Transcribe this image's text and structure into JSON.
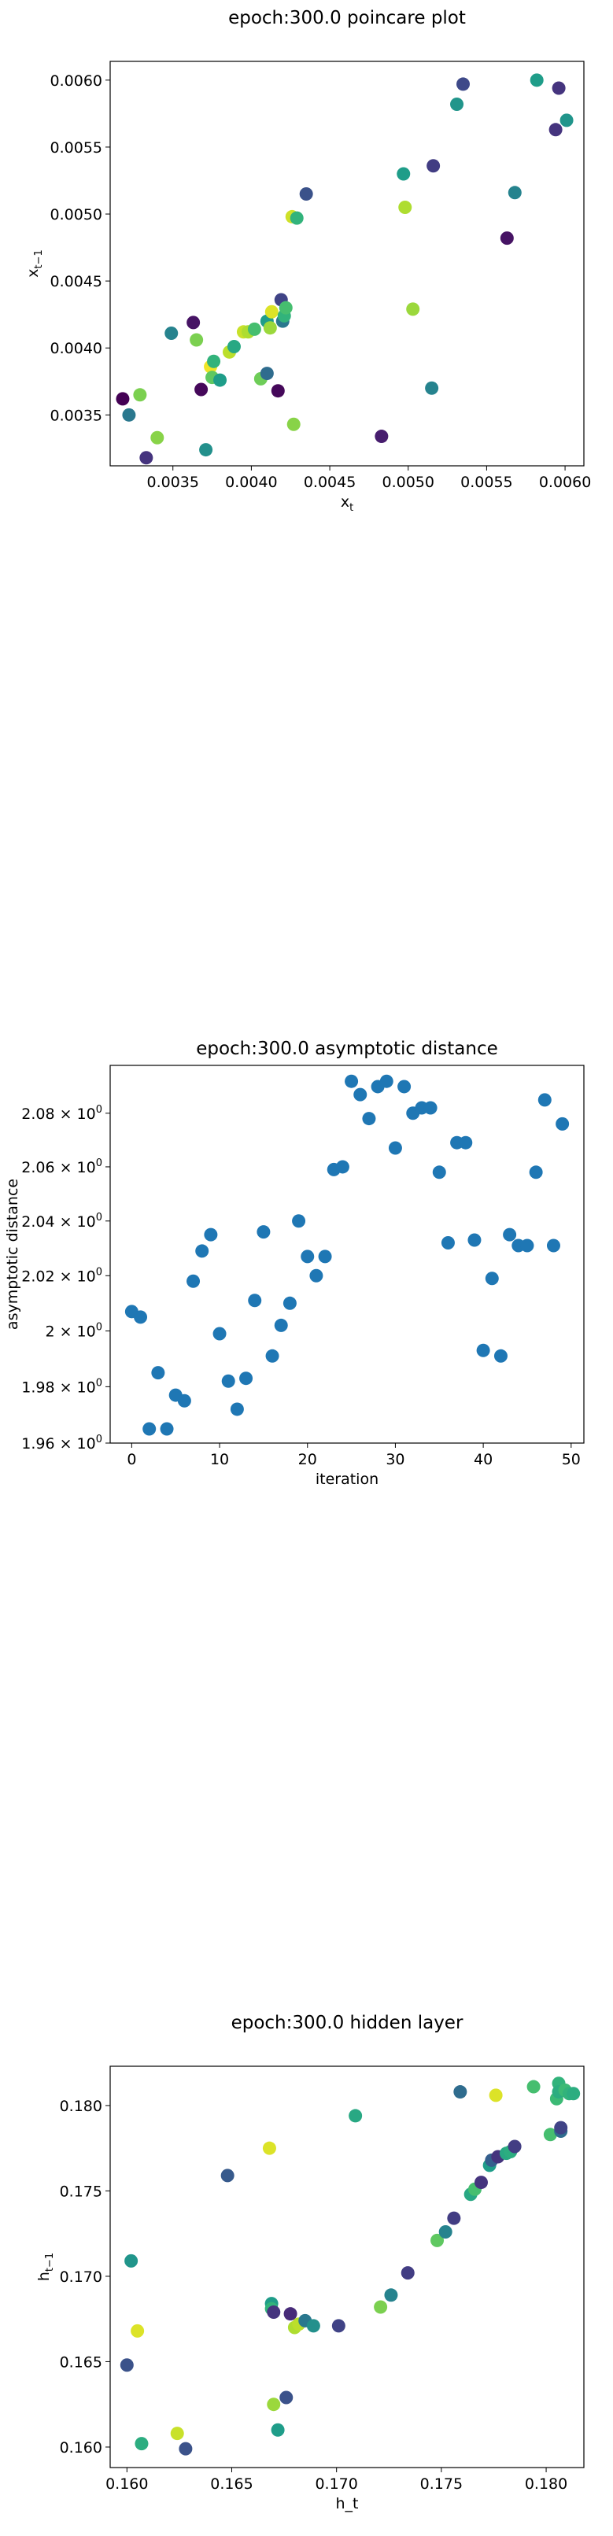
{
  "chart_data": [
    {
      "type": "scatter",
      "title": "epoch:300.0 poincare plot",
      "xlabel": "x",
      "xlabel_sub": "t",
      "ylabel": "x",
      "ylabel_sub": "t−1",
      "xlim": [
        0.0031,
        0.00612
      ],
      "ylim": [
        0.00312,
        0.00614
      ],
      "xticks": [
        0.0035,
        0.004,
        0.0045,
        0.005,
        0.0055,
        0.006
      ],
      "xtick_labels": [
        "0.0035",
        "0.0040",
        "0.0045",
        "0.0050",
        "0.0055",
        "0.0060"
      ],
      "yticks": [
        0.0035,
        0.004,
        0.0045,
        0.005,
        0.0055,
        0.006
      ],
      "ytick_labels": [
        "0.0035",
        "0.0040",
        "0.0045",
        "0.0050",
        "0.0055",
        "0.0060"
      ],
      "colormap": "viridis",
      "points": [
        {
          "x": 0.00318,
          "y": 0.00362,
          "c": 0.0
        },
        {
          "x": 0.00322,
          "y": 0.0035,
          "c": 0.4
        },
        {
          "x": 0.00329,
          "y": 0.00365,
          "c": 0.8
        },
        {
          "x": 0.00333,
          "y": 0.00318,
          "c": 0.15
        },
        {
          "x": 0.0034,
          "y": 0.00333,
          "c": 0.82
        },
        {
          "x": 0.00349,
          "y": 0.00411,
          "c": 0.45
        },
        {
          "x": 0.00363,
          "y": 0.00419,
          "c": 0.05
        },
        {
          "x": 0.00365,
          "y": 0.00406,
          "c": 0.8
        },
        {
          "x": 0.00368,
          "y": 0.00369,
          "c": 0.02
        },
        {
          "x": 0.00371,
          "y": 0.00324,
          "c": 0.5
        },
        {
          "x": 0.00374,
          "y": 0.00386,
          "c": 0.98
        },
        {
          "x": 0.00375,
          "y": 0.00378,
          "c": 0.75
        },
        {
          "x": 0.00376,
          "y": 0.0039,
          "c": 0.65
        },
        {
          "x": 0.0038,
          "y": 0.00376,
          "c": 0.55
        },
        {
          "x": 0.00386,
          "y": 0.00397,
          "c": 0.9
        },
        {
          "x": 0.00389,
          "y": 0.00401,
          "c": 0.6
        },
        {
          "x": 0.00395,
          "y": 0.00412,
          "c": 0.92
        },
        {
          "x": 0.00398,
          "y": 0.00412,
          "c": 0.88
        },
        {
          "x": 0.00402,
          "y": 0.00414,
          "c": 0.7
        },
        {
          "x": 0.00406,
          "y": 0.00377,
          "c": 0.78
        },
        {
          "x": 0.0041,
          "y": 0.00381,
          "c": 0.35
        },
        {
          "x": 0.0041,
          "y": 0.0042,
          "c": 0.55
        },
        {
          "x": 0.00412,
          "y": 0.00415,
          "c": 0.85
        },
        {
          "x": 0.00413,
          "y": 0.00427,
          "c": 0.95
        },
        {
          "x": 0.00417,
          "y": 0.00368,
          "c": 0.02
        },
        {
          "x": 0.00419,
          "y": 0.00436,
          "c": 0.2
        },
        {
          "x": 0.0042,
          "y": 0.0042,
          "c": 0.4
        },
        {
          "x": 0.00421,
          "y": 0.00424,
          "c": 0.65
        },
        {
          "x": 0.00422,
          "y": 0.0043,
          "c": 0.7
        },
        {
          "x": 0.00426,
          "y": 0.00498,
          "c": 0.93
        },
        {
          "x": 0.00427,
          "y": 0.00343,
          "c": 0.82
        },
        {
          "x": 0.00429,
          "y": 0.00497,
          "c": 0.65
        },
        {
          "x": 0.00435,
          "y": 0.00515,
          "c": 0.25
        },
        {
          "x": 0.00483,
          "y": 0.00334,
          "c": 0.08
        },
        {
          "x": 0.00497,
          "y": 0.0053,
          "c": 0.55
        },
        {
          "x": 0.00498,
          "y": 0.00505,
          "c": 0.88
        },
        {
          "x": 0.00503,
          "y": 0.00429,
          "c": 0.85
        },
        {
          "x": 0.00515,
          "y": 0.0037,
          "c": 0.45
        },
        {
          "x": 0.00516,
          "y": 0.00536,
          "c": 0.18
        },
        {
          "x": 0.00531,
          "y": 0.00582,
          "c": 0.52
        },
        {
          "x": 0.00535,
          "y": 0.00597,
          "c": 0.22
        },
        {
          "x": 0.00563,
          "y": 0.00482,
          "c": 0.05
        },
        {
          "x": 0.00568,
          "y": 0.00516,
          "c": 0.45
        },
        {
          "x": 0.00582,
          "y": 0.006,
          "c": 0.55
        },
        {
          "x": 0.00594,
          "y": 0.00563,
          "c": 0.15
        },
        {
          "x": 0.00596,
          "y": 0.00594,
          "c": 0.15
        },
        {
          "x": 0.00601,
          "y": 0.0057,
          "c": 0.52
        }
      ]
    },
    {
      "type": "scatter",
      "title": "epoch:300.0 asymptotic distance",
      "xlabel": "iteration",
      "ylabel": "asymptotic distance",
      "yscale": "log",
      "xlim": [
        -2.45,
        51.45
      ],
      "ylim": [
        1.96,
        2.098
      ],
      "xticks": [
        0,
        10,
        20,
        30,
        40,
        50
      ],
      "xtick_labels": [
        "0",
        "10",
        "20",
        "30",
        "40",
        "50"
      ],
      "yticks": [
        1.96,
        1.98,
        2.0,
        2.02,
        2.04,
        2.06,
        2.08
      ],
      "ytick_base": [
        "1.96",
        "1.98",
        "2",
        "2.02",
        "2.04",
        "2.06",
        "2.08"
      ],
      "ytick_suffix": "× 10",
      "ytick_exp": "0",
      "color": "#1f77b4",
      "x": [
        0,
        1,
        2,
        3,
        4,
        5,
        6,
        7,
        8,
        9,
        10,
        11,
        12,
        13,
        14,
        15,
        16,
        17,
        18,
        19,
        20,
        21,
        22,
        23,
        24,
        25,
        26,
        27,
        28,
        29,
        30,
        31,
        32,
        33,
        34,
        35,
        36,
        37,
        38,
        39,
        40,
        41,
        42,
        43,
        44,
        45,
        46,
        47,
        48,
        49
      ],
      "y": [
        2.007,
        2.005,
        1.965,
        1.985,
        1.965,
        1.977,
        1.975,
        2.018,
        2.029,
        2.035,
        1.999,
        1.982,
        1.972,
        1.983,
        2.011,
        2.036,
        1.991,
        2.002,
        2.01,
        2.04,
        2.027,
        2.02,
        2.027,
        2.059,
        2.06,
        2.092,
        2.087,
        2.078,
        2.09,
        2.092,
        2.067,
        2.09,
        2.08,
        2.082,
        2.082,
        2.058,
        2.032,
        2.069,
        2.069,
        2.033,
        1.993,
        2.019,
        1.991,
        2.035,
        2.031,
        2.031,
        2.058,
        2.085,
        2.031,
        2.076
      ]
    },
    {
      "type": "scatter",
      "title": "epoch:300.0 hidden layer",
      "xlabel": "h_t",
      "ylabel": "h",
      "ylabel_sub": "t−1",
      "xlim": [
        0.1592,
        0.1818
      ],
      "ylim": [
        0.1588,
        0.1823
      ],
      "xticks": [
        0.16,
        0.165,
        0.17,
        0.175,
        0.18
      ],
      "xtick_labels": [
        "0.160",
        "0.165",
        "0.170",
        "0.175",
        "0.180"
      ],
      "yticks": [
        0.16,
        0.165,
        0.17,
        0.175,
        0.18
      ],
      "ytick_labels": [
        "0.160",
        "0.165",
        "0.170",
        "0.175",
        "0.180"
      ],
      "colormap": "viridis",
      "points": [
        {
          "x": 0.16,
          "y": 0.1648,
          "c": 0.25
        },
        {
          "x": 0.1602,
          "y": 0.1709,
          "c": 0.52
        },
        {
          "x": 0.1605,
          "y": 0.1668,
          "c": 0.95
        },
        {
          "x": 0.1607,
          "y": 0.1602,
          "c": 0.62
        },
        {
          "x": 0.1624,
          "y": 0.1608,
          "c": 0.92
        },
        {
          "x": 0.1628,
          "y": 0.1599,
          "c": 0.25
        },
        {
          "x": 0.1648,
          "y": 0.1759,
          "c": 0.28
        },
        {
          "x": 0.1668,
          "y": 0.1775,
          "c": 0.95
        },
        {
          "x": 0.1669,
          "y": 0.1684,
          "c": 0.55
        },
        {
          "x": 0.1669,
          "y": 0.1681,
          "c": 0.65
        },
        {
          "x": 0.167,
          "y": 0.1679,
          "c": 0.15
        },
        {
          "x": 0.167,
          "y": 0.1625,
          "c": 0.85
        },
        {
          "x": 0.1672,
          "y": 0.161,
          "c": 0.55
        },
        {
          "x": 0.1676,
          "y": 0.1629,
          "c": 0.25
        },
        {
          "x": 0.1678,
          "y": 0.1678,
          "c": 0.12
        },
        {
          "x": 0.168,
          "y": 0.167,
          "c": 0.88
        },
        {
          "x": 0.1682,
          "y": 0.1672,
          "c": 0.9
        },
        {
          "x": 0.1685,
          "y": 0.1674,
          "c": 0.4
        },
        {
          "x": 0.1689,
          "y": 0.1671,
          "c": 0.5
        },
        {
          "x": 0.1701,
          "y": 0.1671,
          "c": 0.2
        },
        {
          "x": 0.1709,
          "y": 0.1794,
          "c": 0.6
        },
        {
          "x": 0.1721,
          "y": 0.1682,
          "c": 0.8
        },
        {
          "x": 0.1726,
          "y": 0.1689,
          "c": 0.45
        },
        {
          "x": 0.1734,
          "y": 0.1702,
          "c": 0.18
        },
        {
          "x": 0.1748,
          "y": 0.1721,
          "c": 0.75
        },
        {
          "x": 0.1752,
          "y": 0.1726,
          "c": 0.45
        },
        {
          "x": 0.1756,
          "y": 0.1734,
          "c": 0.18
        },
        {
          "x": 0.1759,
          "y": 0.1808,
          "c": 0.35
        },
        {
          "x": 0.1764,
          "y": 0.1748,
          "c": 0.6
        },
        {
          "x": 0.1766,
          "y": 0.1751,
          "c": 0.7
        },
        {
          "x": 0.1769,
          "y": 0.1755,
          "c": 0.15
        },
        {
          "x": 0.1773,
          "y": 0.1765,
          "c": 0.55
        },
        {
          "x": 0.1774,
          "y": 0.1768,
          "c": 0.3
        },
        {
          "x": 0.1776,
          "y": 0.1806,
          "c": 0.95
        },
        {
          "x": 0.1777,
          "y": 0.177,
          "c": 0.15
        },
        {
          "x": 0.1781,
          "y": 0.1772,
          "c": 0.6
        },
        {
          "x": 0.1783,
          "y": 0.1773,
          "c": 0.62
        },
        {
          "x": 0.1785,
          "y": 0.1776,
          "c": 0.18
        },
        {
          "x": 0.1794,
          "y": 0.1811,
          "c": 0.7
        },
        {
          "x": 0.1802,
          "y": 0.1783,
          "c": 0.7
        },
        {
          "x": 0.1805,
          "y": 0.1804,
          "c": 0.68
        },
        {
          "x": 0.1806,
          "y": 0.1813,
          "c": 0.65
        },
        {
          "x": 0.1806,
          "y": 0.1808,
          "c": 0.62
        },
        {
          "x": 0.1807,
          "y": 0.1785,
          "c": 0.35
        },
        {
          "x": 0.1807,
          "y": 0.1787,
          "c": 0.2
        },
        {
          "x": 0.1809,
          "y": 0.1809,
          "c": 0.68
        },
        {
          "x": 0.1811,
          "y": 0.1807,
          "c": 0.65
        },
        {
          "x": 0.1813,
          "y": 0.1807,
          "c": 0.62
        }
      ]
    }
  ]
}
